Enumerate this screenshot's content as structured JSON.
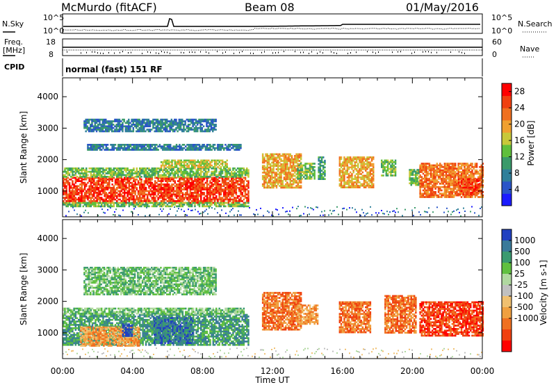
{
  "header": {
    "station": "McMurdo (fitACF)",
    "beam": "Beam 08",
    "date": "01/May/2016"
  },
  "status_panels": {
    "nsky_label": "N.Sky",
    "nsearch_label": "N.Search",
    "freq_label_top": "Freq.",
    "freq_label_bottom": "[MHz]",
    "nave_label": "Nave",
    "cpid_label": "CPID",
    "cpid_text": "normal (fast) 151 RF",
    "noise_left_ticks": [
      "10^5",
      "10^0"
    ],
    "noise_right_ticks": [
      "10^5",
      "10^0"
    ],
    "freq_left_ticks": [
      "18",
      "8"
    ],
    "nave_right_ticks": [
      "60",
      "0"
    ]
  },
  "chart_data": [
    {
      "type": "heatmap",
      "name": "power",
      "xlabel": "",
      "ylabel": "Slant Range [km]",
      "x_range_hours": [
        0,
        24
      ],
      "ylim": [
        180,
        4600
      ],
      "yticks": [
        1000,
        2000,
        3000,
        4000
      ],
      "colorbar": {
        "label": "Power [dB]",
        "ticks": [
          4,
          8,
          12,
          16,
          20,
          24,
          28
        ],
        "range": [
          0,
          30
        ],
        "colors": [
          "#1b1bff",
          "#2a55c8",
          "#2f7f9a",
          "#3a9a6a",
          "#5fbf3c",
          "#c8c83a",
          "#f0a030",
          "#f07020",
          "#f04010",
          "#ff0000"
        ]
      },
      "regions": [
        {
          "x0": 0.0,
          "x1": 10.6,
          "y0": 650,
          "y1": 1450,
          "value": 27
        },
        {
          "x0": 0.0,
          "x1": 10.6,
          "y0": 1450,
          "y1": 1750,
          "value": 14
        },
        {
          "x0": 0.0,
          "x1": 10.6,
          "y0": 500,
          "y1": 650,
          "value": 12
        },
        {
          "x0": 5.6,
          "x1": 9.4,
          "y0": 1750,
          "y1": 2000,
          "value": 18
        },
        {
          "x0": 1.4,
          "x1": 10.2,
          "y0": 2300,
          "y1": 2500,
          "value": 8
        },
        {
          "x0": 1.2,
          "x1": 8.8,
          "y0": 2900,
          "y1": 3300,
          "value": 6
        },
        {
          "x0": 11.4,
          "x1": 13.6,
          "y0": 1100,
          "y1": 2200,
          "value": 20
        },
        {
          "x0": 13.4,
          "x1": 14.4,
          "y0": 1400,
          "y1": 1900,
          "value": 12
        },
        {
          "x0": 14.6,
          "x1": 15.0,
          "y0": 1400,
          "y1": 2100,
          "value": 10
        },
        {
          "x0": 15.8,
          "x1": 17.8,
          "y0": 1100,
          "y1": 2100,
          "value": 19
        },
        {
          "x0": 18.2,
          "x1": 19.0,
          "y0": 1500,
          "y1": 2000,
          "value": 12
        },
        {
          "x0": 19.8,
          "x1": 20.4,
          "y0": 1200,
          "y1": 1700,
          "value": 14
        },
        {
          "x0": 20.4,
          "x1": 24.0,
          "y0": 800,
          "y1": 1900,
          "value": 23
        },
        {
          "x0": 22.6,
          "x1": 23.8,
          "y0": 900,
          "y1": 1400,
          "value": 28
        }
      ]
    },
    {
      "type": "heatmap",
      "name": "velocity",
      "xlabel": "Time UT",
      "ylabel": "Slant Range [km]",
      "x_range_hours": [
        0,
        24
      ],
      "ylim": [
        180,
        4600
      ],
      "yticks": [
        1000,
        2000,
        3000,
        4000
      ],
      "xticks": [
        "00:00",
        "04:00",
        "08:00",
        "12:00",
        "16:00",
        "20:00",
        "00:00"
      ],
      "colorbar": {
        "label": "Velocity [m s-1]",
        "ticks": [
          "1000",
          "500",
          "100",
          "25",
          "-25",
          "-100",
          "-500",
          "-1000"
        ],
        "colors": [
          "#2040c0",
          "#3a7a9a",
          "#3a9a70",
          "#60c040",
          "#b0d8a0",
          "#c0c0c0",
          "#f0c070",
          "#f0a040",
          "#f07020",
          "#f04010",
          "#ff0000"
        ]
      },
      "regions": [
        {
          "x0": 0.0,
          "x1": 10.6,
          "y0": 600,
          "y1": 1600,
          "value": 2
        },
        {
          "x0": 1.0,
          "x1": 4.4,
          "y0": 600,
          "y1": 1200,
          "value": 7
        },
        {
          "x0": 5.2,
          "x1": 7.4,
          "y0": 700,
          "y1": 1500,
          "value": 1
        },
        {
          "x0": 3.4,
          "x1": 4.0,
          "y0": 900,
          "y1": 1300,
          "value": 0
        },
        {
          "x0": 0.0,
          "x1": 10.4,
          "y0": 1600,
          "y1": 1800,
          "value": 3
        },
        {
          "x0": 1.2,
          "x1": 8.8,
          "y0": 2200,
          "y1": 3100,
          "value": 3
        },
        {
          "x0": 11.4,
          "x1": 13.6,
          "y0": 1100,
          "y1": 2300,
          "value": 8
        },
        {
          "x0": 13.4,
          "x1": 14.6,
          "y0": 1300,
          "y1": 1900,
          "value": 7
        },
        {
          "x0": 15.8,
          "x1": 17.6,
          "y0": 1000,
          "y1": 2000,
          "value": 8
        },
        {
          "x0": 18.4,
          "x1": 20.2,
          "y0": 1000,
          "y1": 2200,
          "value": 8
        },
        {
          "x0": 20.4,
          "x1": 24.0,
          "y0": 900,
          "y1": 2000,
          "value": 9
        }
      ]
    }
  ]
}
